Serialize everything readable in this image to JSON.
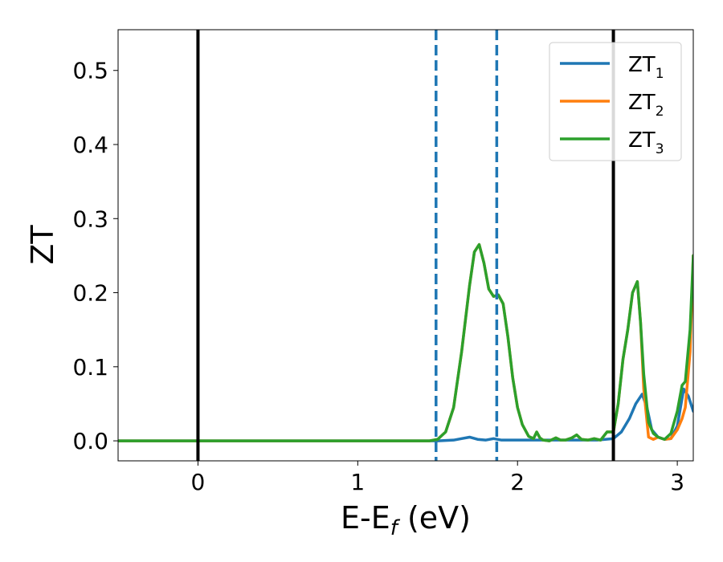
{
  "chart_data": {
    "type": "line",
    "title": "",
    "xlabel": "E-E",
    "xlabel_sub": "f",
    "xlabel_unit": "(eV)",
    "ylabel": "ZT",
    "xlim": [
      -0.5,
      3.1
    ],
    "ylim": [
      -0.027,
      0.555
    ],
    "xticks": [
      0,
      1,
      2,
      3
    ],
    "xtick_labels": [
      "0",
      "1",
      "2",
      "3"
    ],
    "yticks": [
      0.0,
      0.1,
      0.2,
      0.3,
      0.4,
      0.5
    ],
    "ytick_labels": [
      "0.0",
      "0.1",
      "0.2",
      "0.3",
      "0.4",
      "0.5"
    ],
    "grid": false,
    "legend": {
      "placement": "top-right"
    },
    "vlines": [
      {
        "x": 0.0,
        "color": "#000000",
        "style": "solid"
      },
      {
        "x": 2.6,
        "color": "#000000",
        "style": "solid"
      },
      {
        "x": 1.49,
        "color": "#1f77b4",
        "style": "dashed"
      },
      {
        "x": 1.87,
        "color": "#1f77b4",
        "style": "dashed"
      }
    ],
    "series": [
      {
        "name": "ZT",
        "name_sub": "1",
        "color": "#1f77b4",
        "x": [
          -0.5,
          1.5,
          1.6,
          1.65,
          1.7,
          1.75,
          1.8,
          1.85,
          1.9,
          2.0,
          2.1,
          2.3,
          2.5,
          2.6,
          2.65,
          2.7,
          2.74,
          2.78,
          2.81,
          2.84,
          2.88,
          2.92,
          2.96,
          3.0,
          3.04,
          3.07,
          3.1
        ],
        "y": [
          0.0,
          0.0,
          0.001,
          0.003,
          0.005,
          0.002,
          0.001,
          0.003,
          0.001,
          0.001,
          0.001,
          0.001,
          0.001,
          0.003,
          0.012,
          0.03,
          0.05,
          0.063,
          0.045,
          0.015,
          0.005,
          0.002,
          0.003,
          0.02,
          0.07,
          0.06,
          0.04
        ]
      },
      {
        "name": "ZT",
        "name_sub": "2",
        "color": "#ff7f0e",
        "x": [
          -0.5,
          1.45,
          1.5,
          1.55,
          1.6,
          1.65,
          1.7,
          1.73,
          1.76,
          1.79,
          1.82,
          1.85,
          1.88,
          1.91,
          1.94,
          1.97,
          2.0,
          2.03,
          2.07,
          2.1,
          2.12,
          2.14,
          2.16,
          2.2,
          2.24,
          2.27,
          2.3,
          2.34,
          2.37,
          2.4,
          2.44,
          2.48,
          2.52,
          2.56,
          2.6,
          2.63,
          2.66,
          2.69,
          2.72,
          2.75,
          2.77,
          2.79,
          2.82,
          2.85,
          2.88,
          2.92,
          2.96,
          3.0,
          3.03,
          3.05,
          3.08,
          3.1
        ],
        "y": [
          0.0,
          0.0,
          0.002,
          0.012,
          0.045,
          0.12,
          0.21,
          0.255,
          0.265,
          0.24,
          0.205,
          0.195,
          0.197,
          0.185,
          0.14,
          0.085,
          0.045,
          0.022,
          0.006,
          0.003,
          0.012,
          0.004,
          0.001,
          0.0,
          0.004,
          0.001,
          0.001,
          0.004,
          0.008,
          0.002,
          0.001,
          0.003,
          0.001,
          0.012,
          0.012,
          0.05,
          0.11,
          0.15,
          0.2,
          0.215,
          0.16,
          0.07,
          0.005,
          0.002,
          0.005,
          0.002,
          0.003,
          0.015,
          0.03,
          0.045,
          0.12,
          0.25
        ]
      },
      {
        "name": "ZT",
        "name_sub": "3",
        "color": "#2ca02c",
        "x": [
          -0.5,
          1.45,
          1.5,
          1.55,
          1.6,
          1.65,
          1.7,
          1.73,
          1.76,
          1.79,
          1.82,
          1.85,
          1.88,
          1.91,
          1.94,
          1.97,
          2.0,
          2.03,
          2.07,
          2.1,
          2.12,
          2.14,
          2.16,
          2.2,
          2.24,
          2.27,
          2.3,
          2.34,
          2.37,
          2.4,
          2.44,
          2.48,
          2.52,
          2.56,
          2.6,
          2.63,
          2.66,
          2.69,
          2.72,
          2.75,
          2.77,
          2.79,
          2.82,
          2.85,
          2.88,
          2.92,
          2.96,
          3.0,
          3.03,
          3.05,
          3.08,
          3.1
        ],
        "y": [
          0.0,
          0.0,
          0.002,
          0.012,
          0.045,
          0.12,
          0.21,
          0.255,
          0.265,
          0.24,
          0.205,
          0.195,
          0.197,
          0.185,
          0.14,
          0.085,
          0.045,
          0.022,
          0.006,
          0.003,
          0.012,
          0.004,
          0.001,
          0.0,
          0.004,
          0.001,
          0.001,
          0.004,
          0.008,
          0.002,
          0.001,
          0.003,
          0.001,
          0.012,
          0.012,
          0.05,
          0.11,
          0.15,
          0.2,
          0.215,
          0.16,
          0.09,
          0.025,
          0.01,
          0.005,
          0.002,
          0.01,
          0.04,
          0.075,
          0.08,
          0.15,
          0.25
        ]
      }
    ]
  }
}
